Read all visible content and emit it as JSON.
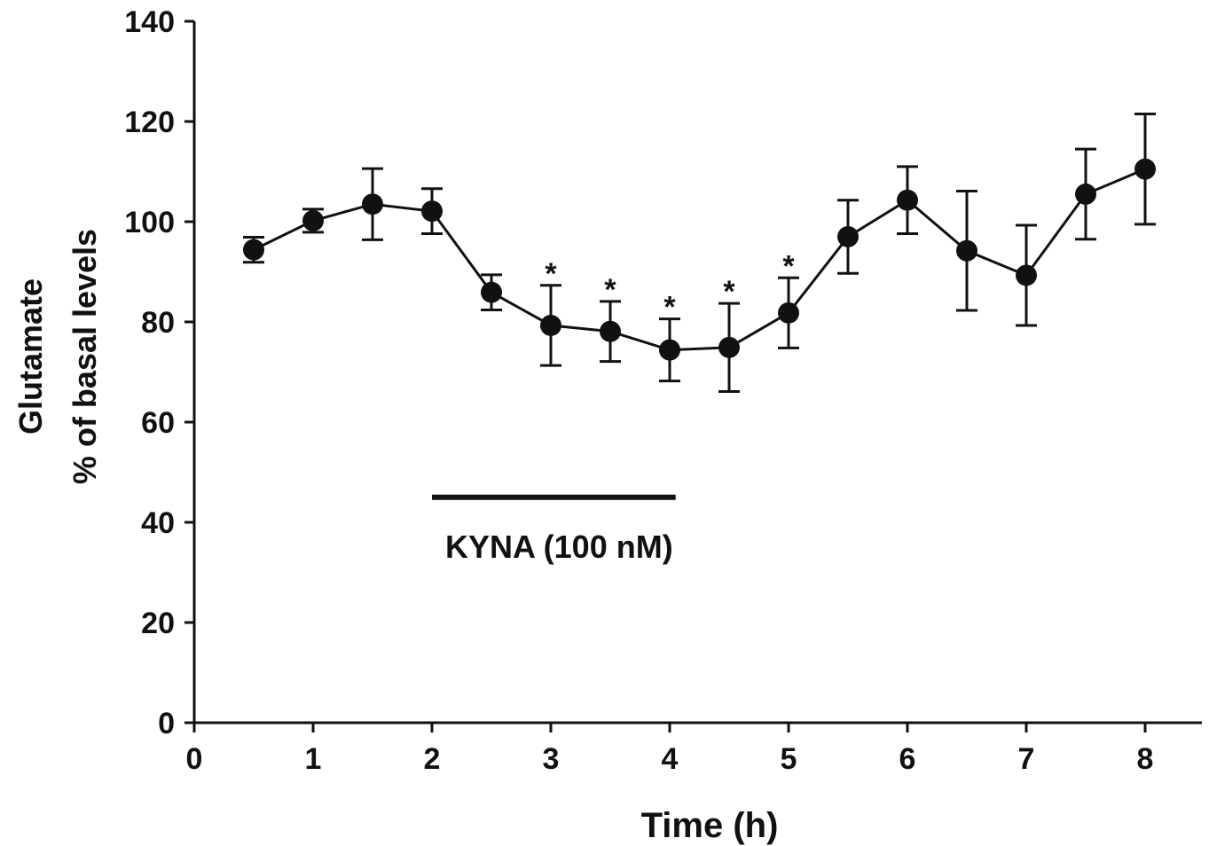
{
  "chart_data": {
    "type": "line",
    "xlabel": "Time (h)",
    "ylabel_lines": [
      "Glutamate",
      "% of basal levels"
    ],
    "xlim": [
      0,
      8.5
    ],
    "ylim": [
      0,
      140
    ],
    "x_ticks": [
      0,
      1,
      2,
      3,
      4,
      5,
      6,
      7,
      8
    ],
    "y_ticks": [
      0,
      20,
      40,
      60,
      80,
      100,
      120,
      140
    ],
    "grid": false,
    "series": [
      {
        "x": [
          0.5,
          1,
          1.5,
          2,
          2.5,
          3,
          3.5,
          4,
          4.5,
          5,
          5.5,
          6,
          6.5,
          7,
          7.5,
          8
        ],
        "y": [
          94.4,
          100.2,
          103.5,
          102.1,
          85.9,
          79.3,
          78.1,
          74.4,
          74.9,
          81.8,
          97.0,
          104.3,
          94.2,
          89.3,
          105.5,
          110.5
        ],
        "err": [
          2.5,
          2.3,
          7.1,
          4.5,
          3.5,
          8.0,
          6.0,
          6.2,
          8.8,
          7.0,
          7.3,
          6.7,
          11.9,
          10.0,
          9.0,
          11.0
        ]
      }
    ],
    "significance": {
      "symbol": "*",
      "x": [
        3,
        3.5,
        4,
        4.5,
        5
      ]
    },
    "treatment_bar": {
      "label": "KYNA (100 nM)",
      "x_start": 2,
      "x_end": 4.05,
      "y": 45
    },
    "colors": {
      "line": "#111111",
      "marker": "#111111"
    }
  }
}
